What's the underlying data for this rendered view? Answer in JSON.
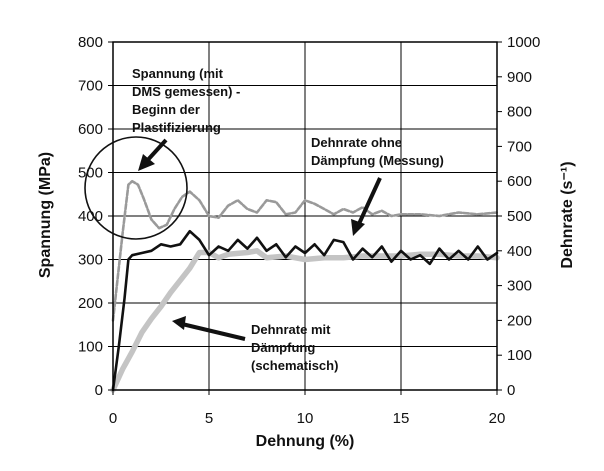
{
  "chart_data": {
    "type": "line",
    "xlabel": "Dehnung (%)",
    "ylabel": "Spannung (MPa)",
    "y2label": "Dehnrate (s⁻¹)",
    "xlim": [
      0,
      20
    ],
    "ylim": [
      0,
      800
    ],
    "y2lim": [
      0,
      1000
    ],
    "x_ticks": [
      "0",
      "5",
      "10",
      "15",
      "20"
    ],
    "y_ticks": [
      "0",
      "100",
      "200",
      "300",
      "400",
      "500",
      "600",
      "700",
      "800"
    ],
    "y2_ticks": [
      "0",
      "100",
      "200",
      "300",
      "400",
      "500",
      "600",
      "700",
      "800",
      "900",
      "1000"
    ],
    "grid": "horizontal and vertical at major ticks",
    "colors": {
      "stress": "#111111",
      "strain_rate_measured": "#9a9a9a",
      "strain_rate_damped": "#c4c4c4",
      "grid": "#000000"
    },
    "series": [
      {
        "axis": "left",
        "style": "solid black",
        "x": [
          0,
          0.3,
          0.6,
          0.8,
          1.0,
          1.5,
          2.0,
          2.5,
          3.0,
          3.5,
          4.0,
          4.5,
          5.0,
          5.5,
          6.0,
          6.5,
          7.0,
          7.5,
          8.0,
          8.5,
          9.0,
          9.5,
          10.0,
          10.5,
          11.0,
          11.5,
          12.0,
          12.5,
          13.0,
          13.5,
          14.0,
          14.5,
          15.0,
          15.5,
          16.0,
          16.5,
          17.0,
          17.5,
          18.0,
          18.5,
          19.0,
          19.5,
          20.0
        ],
        "values": [
          0,
          100,
          210,
          300,
          310,
          315,
          320,
          335,
          330,
          335,
          365,
          345,
          310,
          330,
          320,
          345,
          325,
          350,
          320,
          335,
          305,
          330,
          315,
          335,
          310,
          345,
          340,
          300,
          325,
          305,
          330,
          295,
          320,
          300,
          310,
          290,
          325,
          300,
          320,
          300,
          330,
          300,
          315
        ]
      },
      {
        "axis": "right",
        "style": "dashed grey",
        "x": [
          0,
          0.5,
          0.8,
          1.0,
          1.3,
          1.6,
          2.0,
          2.4,
          2.8,
          3.2,
          3.6,
          4.0,
          4.5,
          5.0,
          5.5,
          6.0,
          6.5,
          7.0,
          7.5,
          8.0,
          8.5,
          9.0,
          9.5,
          10.0,
          10.5,
          11.0,
          11.5,
          12.0,
          12.5,
          13.0,
          13.5,
          14.0,
          14.5,
          15.0,
          16.0,
          17.0,
          18.0,
          19.0,
          20.0
        ],
        "values": [
          200,
          450,
          590,
          600,
          590,
          550,
          490,
          465,
          475,
          520,
          555,
          570,
          545,
          500,
          495,
          530,
          545,
          520,
          510,
          545,
          540,
          505,
          510,
          545,
          535,
          520,
          505,
          520,
          510,
          525,
          505,
          515,
          500,
          505,
          505,
          500,
          510,
          505,
          510
        ]
      },
      {
        "axis": "right",
        "style": "thick light grey",
        "x": [
          0,
          0.5,
          1.0,
          1.5,
          2.0,
          2.5,
          3.0,
          3.5,
          4.0,
          4.5,
          5.0,
          5.5,
          6.0,
          7.0,
          7.5,
          8.0,
          9.0,
          10.0,
          11.0,
          12.0,
          13.0,
          14.0,
          15.0,
          16.0,
          17.0,
          18.0,
          19.0,
          20.0
        ],
        "values": [
          0,
          60,
          110,
          165,
          205,
          240,
          280,
          315,
          350,
          395,
          395,
          380,
          390,
          395,
          400,
          380,
          385,
          375,
          380,
          380,
          385,
          385,
          385,
          390,
          390,
          385,
          385,
          380
        ]
      }
    ],
    "annotations": [
      {
        "lines": [
          "Spannung (mit",
          "DMS gemessen) -",
          "Beginn der",
          "Plastifizierung"
        ]
      },
      {
        "lines": [
          "Dehnrate ohne",
          "Dämpfung (Messung)"
        ]
      },
      {
        "lines": [
          "Dehnrate mit",
          "Dämpfung",
          "(schematisch)"
        ]
      }
    ]
  }
}
